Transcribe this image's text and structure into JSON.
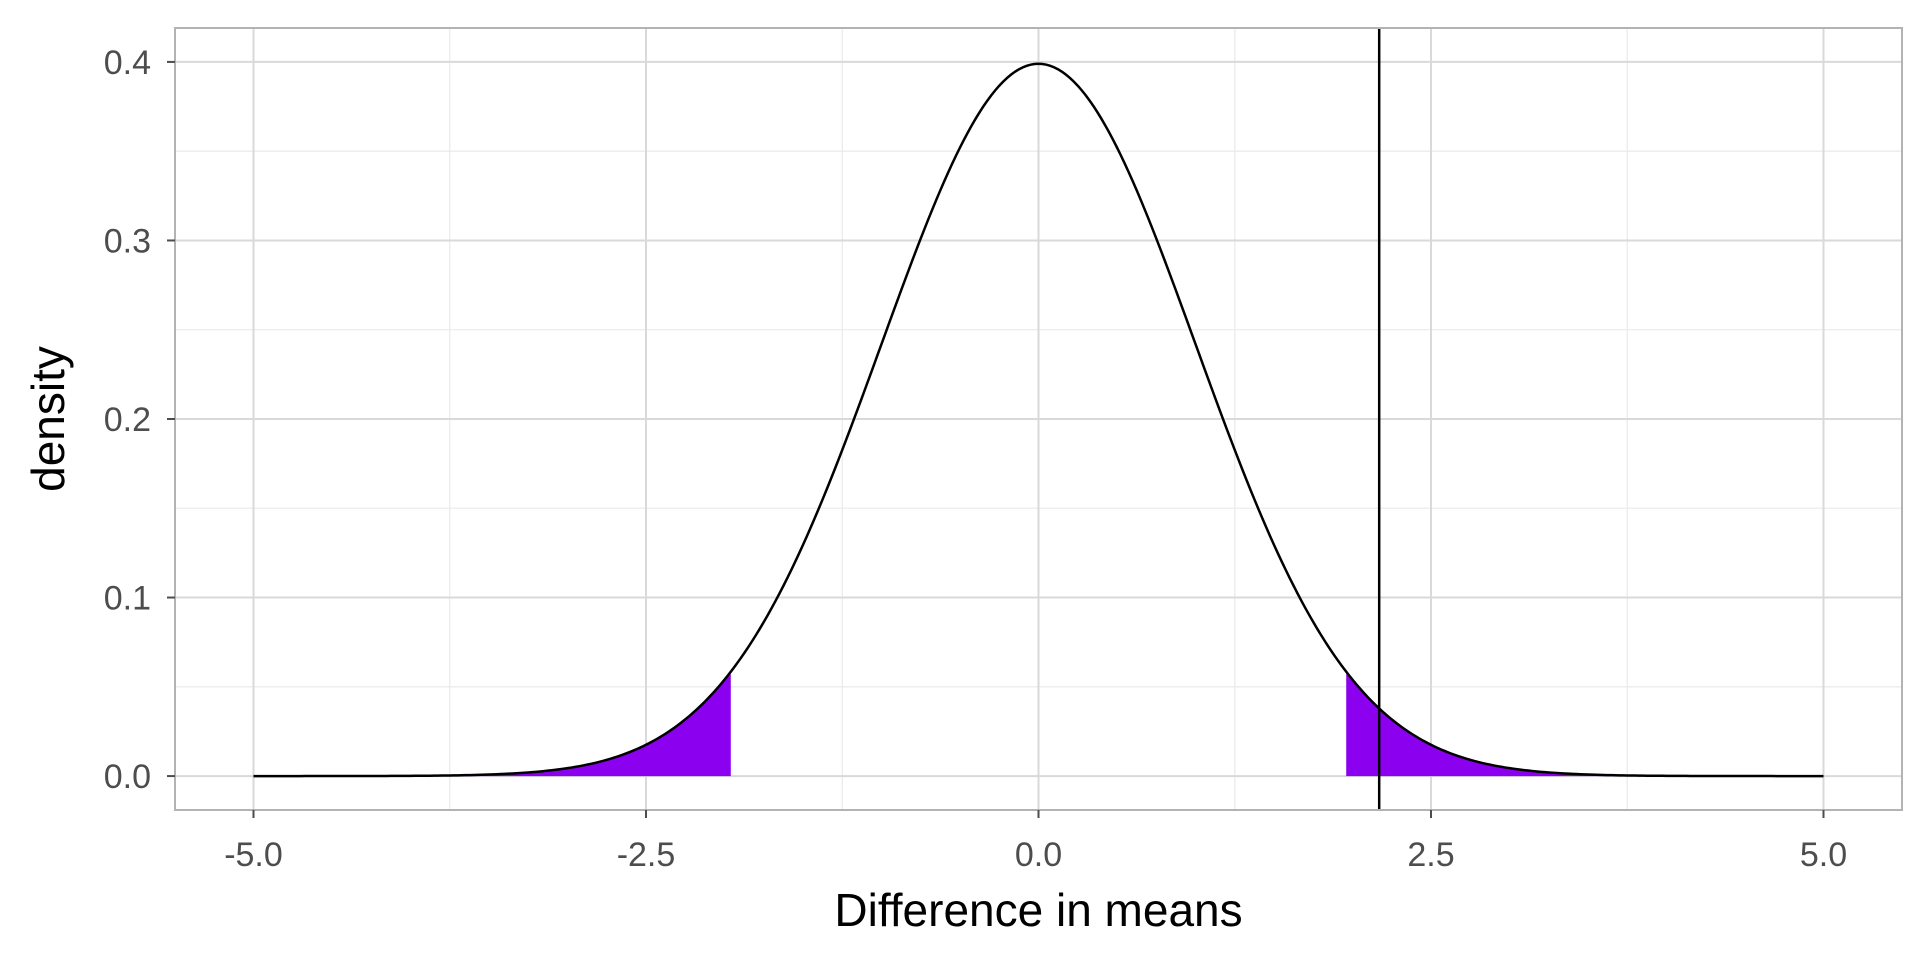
{
  "chart_data": {
    "type": "area",
    "distribution": "standard normal density",
    "xlabel": "Difference in means",
    "ylabel": "density",
    "xlim": [
      -5.5,
      5.5
    ],
    "ylim": [
      -0.019,
      0.419
    ],
    "x_ticks": [
      -5.0,
      -2.5,
      0.0,
      2.5,
      5.0
    ],
    "x_tick_labels": [
      "-5.0",
      "-2.5",
      "0.0",
      "2.5",
      "5.0"
    ],
    "y_ticks": [
      0.0,
      0.1,
      0.2,
      0.3,
      0.4
    ],
    "y_tick_labels": [
      "0.0",
      "0.1",
      "0.2",
      "0.3",
      "0.4"
    ],
    "curve": {
      "x": [
        -5.0,
        -4.5,
        -4.0,
        -3.5,
        -3.0,
        -2.5,
        -2.0,
        -1.96,
        -1.5,
        -1.0,
        -0.5,
        0.0,
        0.5,
        1.0,
        1.5,
        1.96,
        2.0,
        2.17,
        2.5,
        3.0,
        3.5,
        4.0,
        4.5,
        5.0
      ],
      "y": [
        0.0,
        0.0,
        0.0001,
        0.0009,
        0.0044,
        0.0175,
        0.054,
        0.0584,
        0.1295,
        0.242,
        0.3521,
        0.3989,
        0.3521,
        0.242,
        0.1295,
        0.0584,
        0.054,
        0.0379,
        0.0175,
        0.0044,
        0.0009,
        0.0001,
        0.0,
        0.0
      ]
    },
    "shaded_regions": [
      {
        "x_from": -5.0,
        "x_to": -1.96
      },
      {
        "x_from": 1.96,
        "x_to": 5.0
      }
    ],
    "vline_x": 2.17,
    "grid": true,
    "legend": "none",
    "colors": {
      "shade": "#8b00ee",
      "curve": "#000000",
      "grid_major": "#d9d9d9",
      "grid_minor": "#ebebeb",
      "border": "#b3b3b3"
    }
  }
}
